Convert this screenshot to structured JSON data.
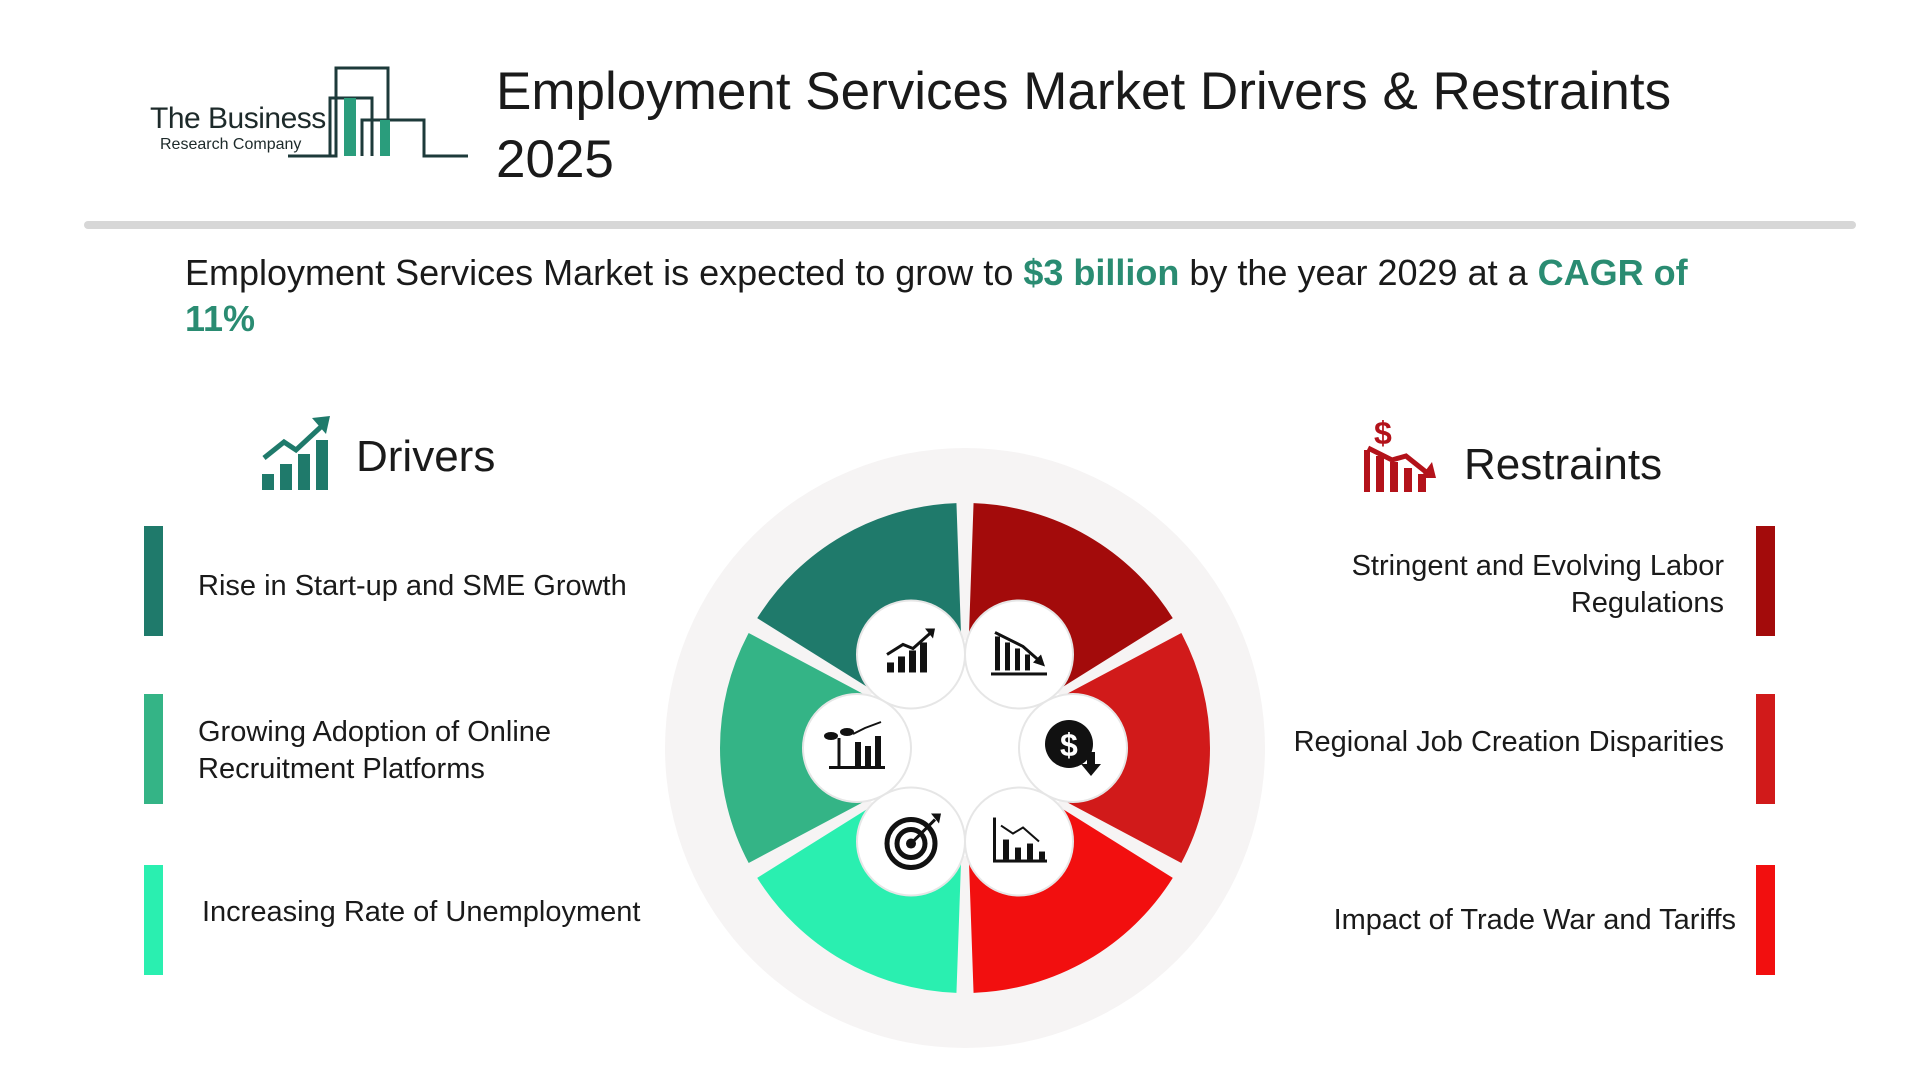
{
  "logo": {
    "name": "The Business",
    "sub": "Research Company"
  },
  "title": "Employment Services Market Drivers & Restraints 2025",
  "summary": {
    "pre": "Employment Services Market is expected to grow to ",
    "value": "$3 billion",
    "mid": " by the year 2029 at a ",
    "cagr": "CAGR of 11%"
  },
  "drivers": {
    "heading": "Drivers",
    "items": [
      {
        "label": "Rise in Start-up and SME Growth",
        "color": "#1f7a6b"
      },
      {
        "label": "Growing Adoption of Online Recruitment Platforms",
        "color": "#34b486"
      },
      {
        "label": "Increasing Rate of Unemployment",
        "color": "#2aefb0"
      }
    ]
  },
  "restraints": {
    "heading": "Restraints",
    "items": [
      {
        "label": "Stringent and Evolving Labor Regulations",
        "color": "#a30b0b"
      },
      {
        "label": "Regional Job Creation Disparities",
        "color": "#d11a1a"
      },
      {
        "label": "Impact of Trade War and Tariffs",
        "color": "#f20f0f"
      }
    ]
  },
  "wheel_icons": [
    "growth-chart-icon",
    "decline-chart-icon",
    "plant-growth-icon",
    "dollar-down-icon",
    "target-icon",
    "downtrend-chart-icon"
  ]
}
